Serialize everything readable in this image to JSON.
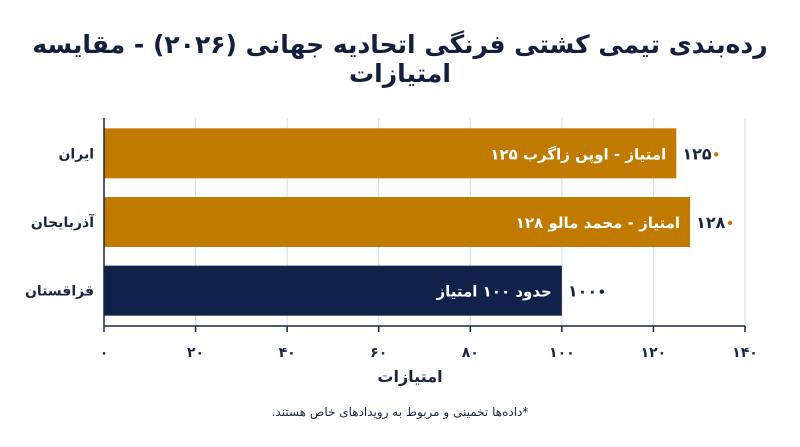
{
  "title": "رده‌بندی تیمی کشتی فرنگی اتحادیه جهانی (۲۰۲۶) - مقایسه امتیازات",
  "footnote": "*داده‌ها تخمینی و مربوط به رویدادهای خاص هستند.",
  "colors": {
    "gold": "#c07a00",
    "navy": "#10214a",
    "axis": "#1b2540",
    "grid": "#d9dbe0"
  },
  "chart_data": {
    "type": "bar",
    "orientation": "horizontal",
    "categories": [
      "ایران",
      "آذربایجان",
      "قزاقستان"
    ],
    "values": [
      125,
      128,
      100
    ],
    "value_labels": [
      "۱۲۵",
      "۱۲۸",
      "۱۰۰"
    ],
    "bar_texts": [
      "۱۲۵ امتیاز - اوپن زاگرب",
      "۱۲۸ امتیاز - محمد مالو",
      "حدود ۱۰۰ امتیاز"
    ],
    "bar_colors": [
      "#c07a00",
      "#c07a00",
      "#10214a"
    ],
    "xlim": [
      0,
      140
    ],
    "xticks": [
      0,
      20,
      40,
      60,
      80,
      100,
      120,
      140
    ],
    "xtick_labels": [
      "۰",
      "۲۰",
      "۴۰",
      "۶۰",
      "۸۰",
      "۱۰۰",
      "۱۲۰",
      "۱۴۰"
    ],
    "xlabel": "امتیازات",
    "ylabel": "",
    "grid": true
  }
}
